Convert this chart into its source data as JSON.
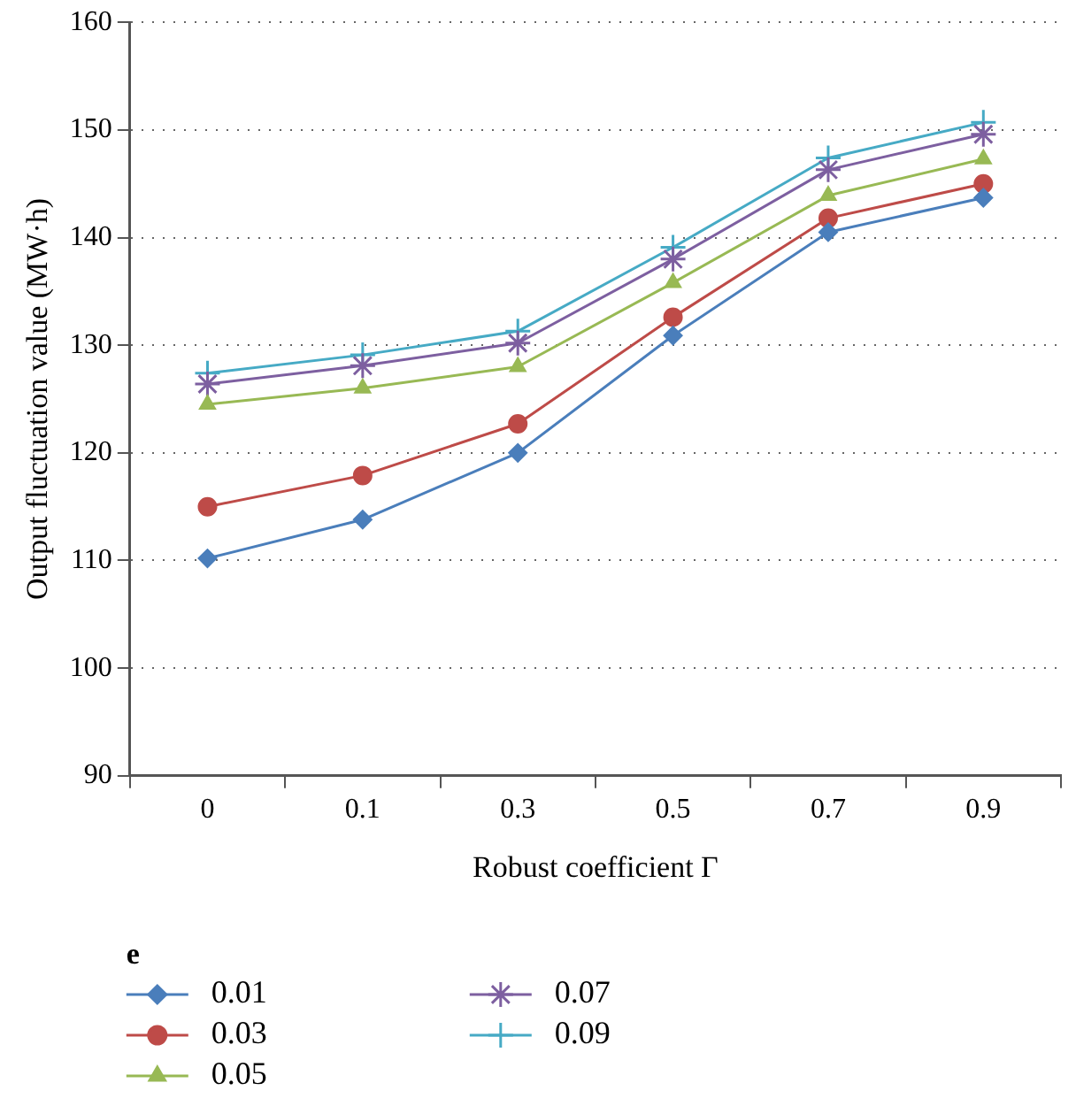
{
  "chart_data": {
    "type": "line",
    "xlabel": "Robust coefficient Γ",
    "ylabel": "Output fluctuation value (MW·h)",
    "legend_title": "e",
    "categories": [
      "0",
      "0.1",
      "0.3",
      "0.5",
      "0.7",
      "0.9"
    ],
    "series": [
      {
        "name": "0.01",
        "color": "#4a7ebb",
        "marker": "diamond",
        "values": [
          110.2,
          113.8,
          120.0,
          130.9,
          140.5,
          143.7
        ]
      },
      {
        "name": "0.03",
        "color": "#be4b48",
        "marker": "circle",
        "values": [
          115.0,
          117.9,
          122.7,
          132.6,
          141.8,
          145.0
        ]
      },
      {
        "name": "0.05",
        "color": "#98b954",
        "marker": "triangle",
        "values": [
          124.5,
          126.0,
          128.0,
          135.8,
          143.9,
          147.3
        ]
      },
      {
        "name": "0.07",
        "color": "#7d5fa0",
        "marker": "cross",
        "values": [
          126.4,
          128.1,
          130.2,
          138.0,
          146.3,
          149.6
        ]
      },
      {
        "name": "0.09",
        "color": "#46aac5",
        "marker": "cross",
        "values": [
          127.4,
          129.1,
          131.3,
          139.1,
          147.4,
          150.7
        ]
      }
    ],
    "ylim": [
      90,
      160
    ],
    "yticks": [
      90,
      100,
      110,
      120,
      130,
      140,
      150,
      160
    ],
    "grid": "y",
    "legend": "bottom left",
    "line_style": "solid"
  }
}
